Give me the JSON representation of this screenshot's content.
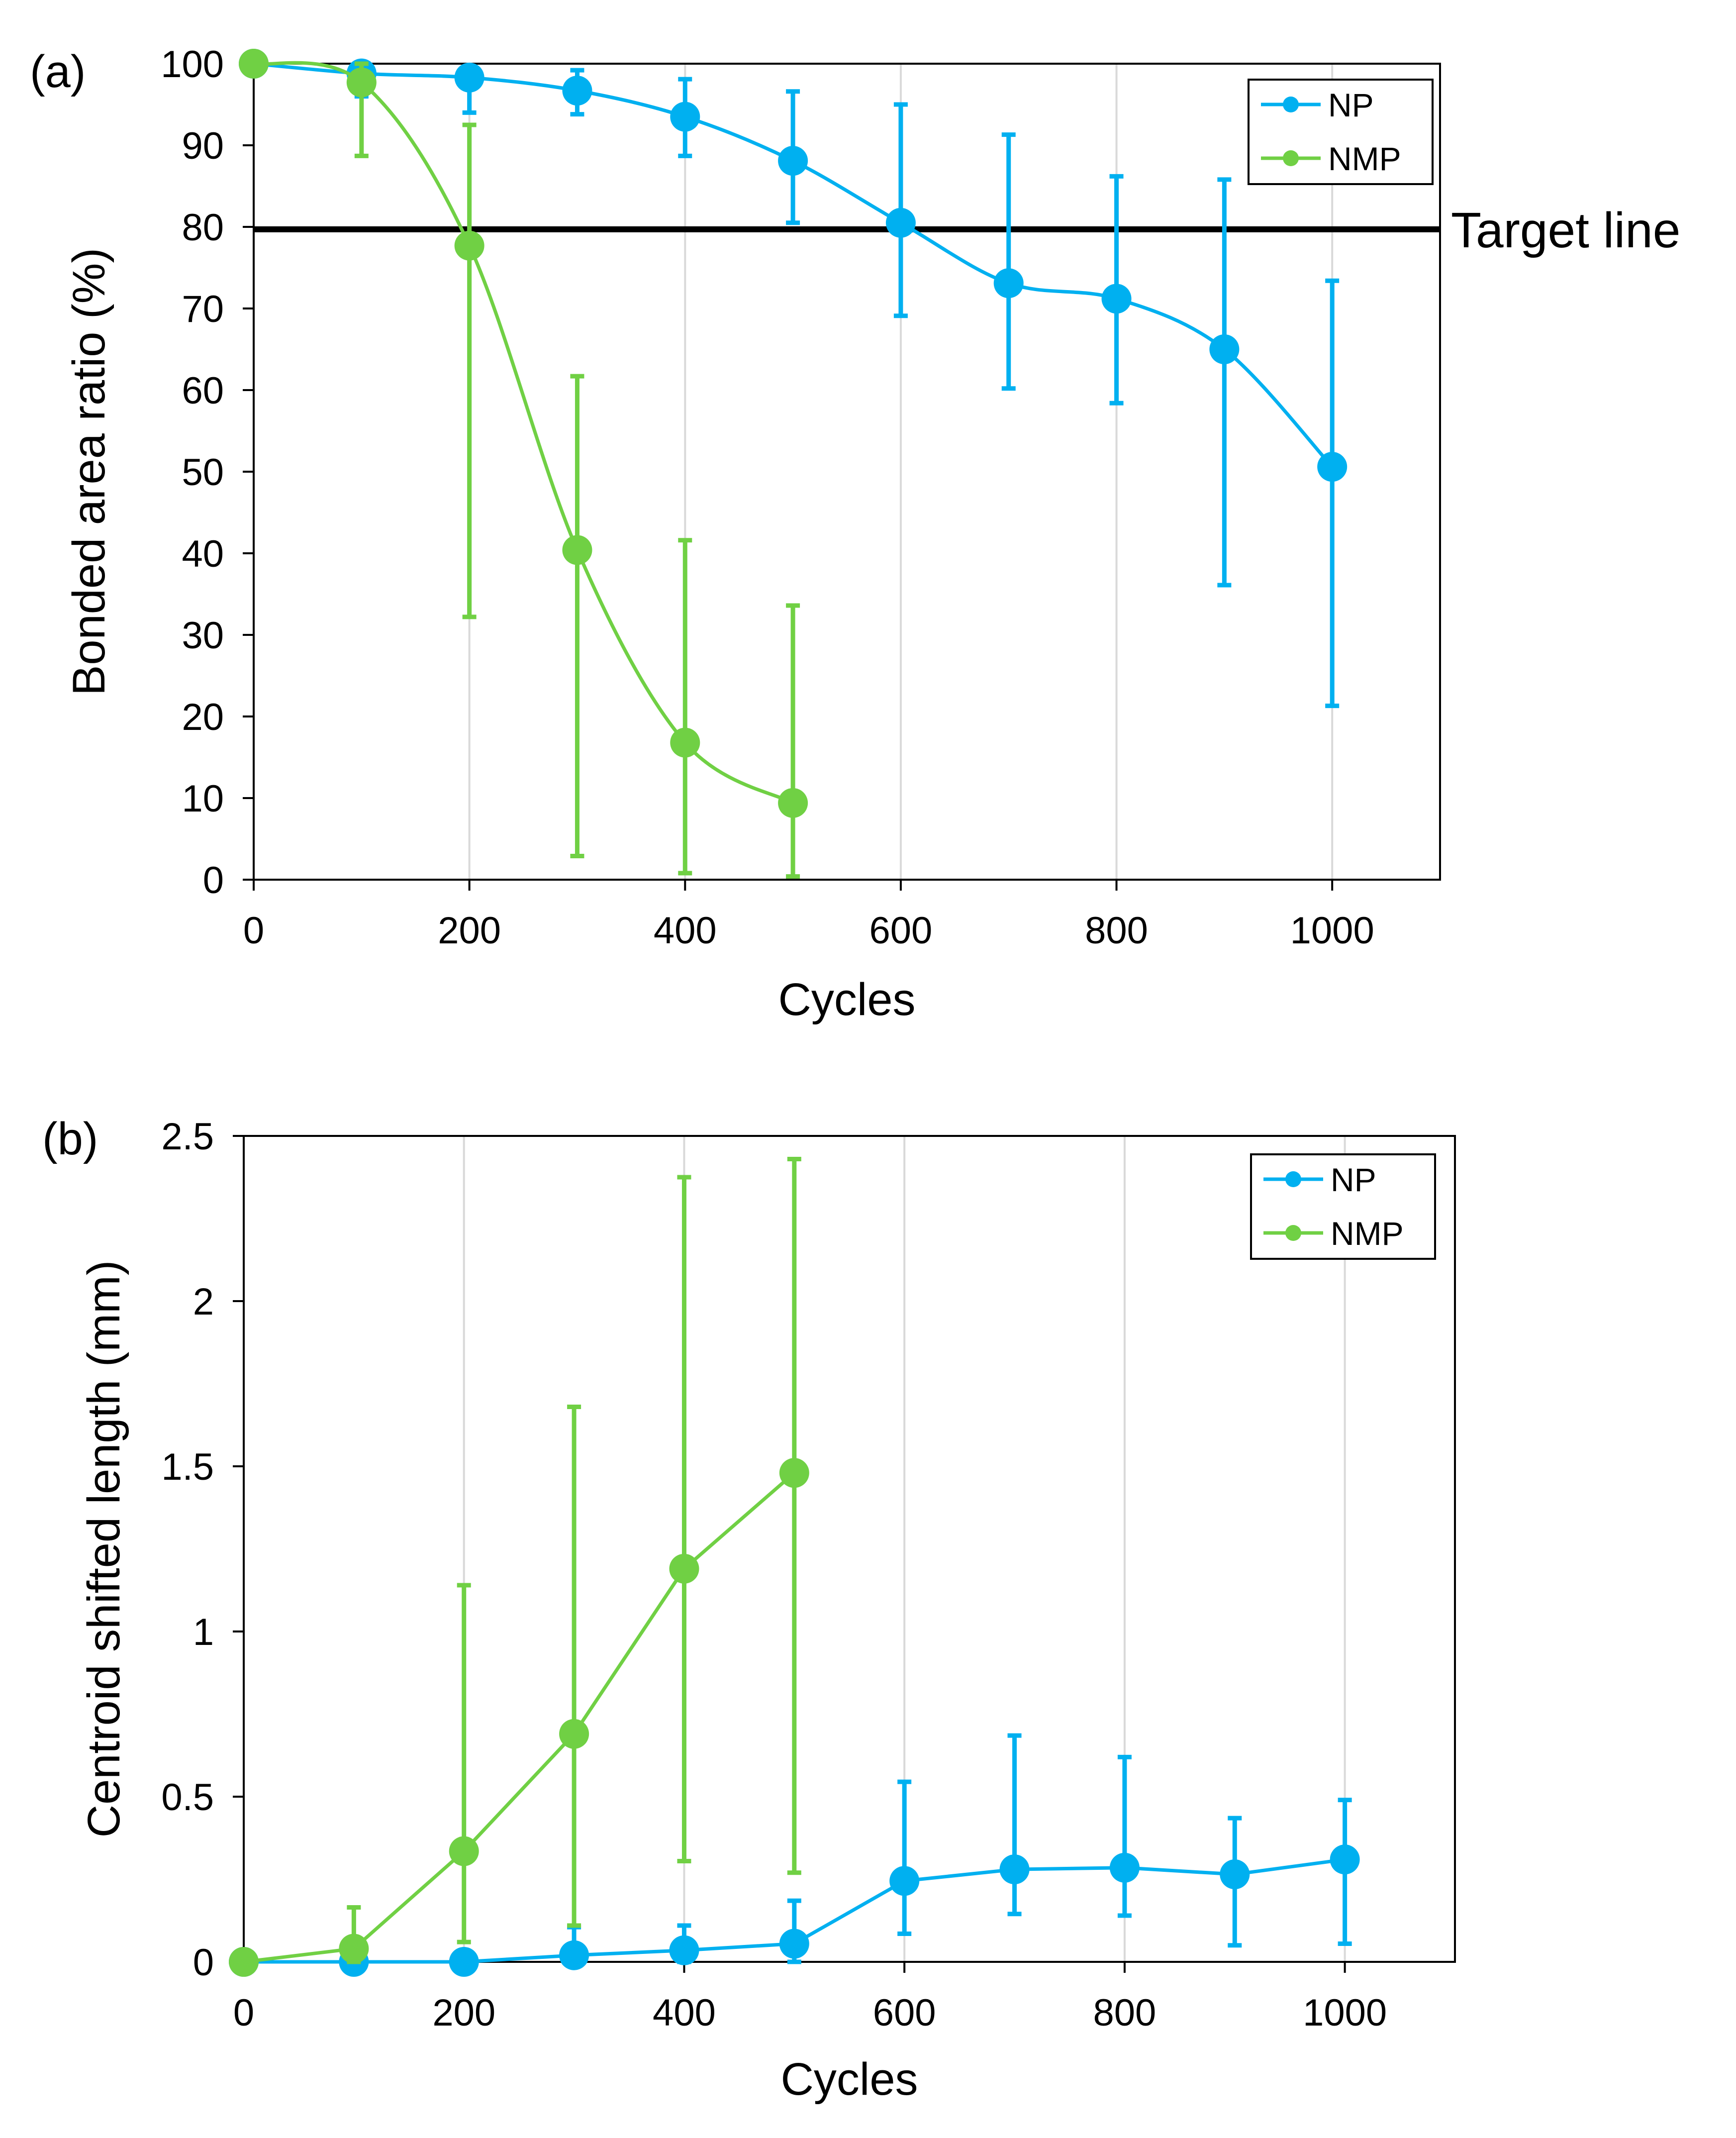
{
  "colors": {
    "NP": "#00B0F0",
    "NMP": "#70D044",
    "grid": "#D9D9D9",
    "axis": "#000000"
  },
  "chart_data": [
    {
      "panel": "(a)",
      "type": "line",
      "xlabel": "Cycles",
      "ylabel": "Bonded area ratio (%)",
      "xlim": [
        0,
        1100
      ],
      "ylim": [
        0,
        100
      ],
      "xticks": [
        "0",
        "200",
        "400",
        "600",
        "800",
        "1000"
      ],
      "yticks": [
        "0",
        "10",
        "20",
        "30",
        "40",
        "50",
        "60",
        "70",
        "80",
        "90",
        "100"
      ],
      "legend": "top-right",
      "reference_line": {
        "y": 79.7,
        "label": "Target line"
      },
      "series": [
        {
          "name": "NP",
          "x": [
            0,
            100,
            200,
            300,
            400,
            500,
            600,
            700,
            800,
            900,
            1000
          ],
          "y": [
            100,
            98.8,
            98.3,
            96.7,
            93.5,
            88.1,
            80.5,
            73.1,
            71.2,
            65.0,
            50.6
          ],
          "err_low": [
            100,
            96,
            94,
            93.8,
            88.7,
            80.5,
            69.1,
            60.2,
            58.4,
            36.1,
            21.3
          ],
          "err_high": [
            100,
            100,
            98.7,
            99.2,
            98.1,
            96.6,
            95.0,
            91.3,
            86.2,
            85.8,
            73.4
          ]
        },
        {
          "name": "NMP",
          "x": [
            0,
            100,
            200,
            300,
            400,
            500
          ],
          "y": [
            100,
            97.7,
            77.7,
            40.4,
            16.8,
            9.4
          ],
          "err_low": [
            100,
            88.7,
            32.2,
            2.9,
            0.8,
            0.4
          ],
          "err_high": [
            100,
            100,
            92.5,
            61.7,
            41.6,
            33.6
          ]
        }
      ]
    },
    {
      "panel": "(b)",
      "type": "line",
      "xlabel": "Cycles",
      "ylabel": "Centroid shifted length (mm)",
      "xlim": [
        0,
        1100
      ],
      "ylim": [
        0,
        2.5
      ],
      "xticks": [
        "0",
        "200",
        "400",
        "600",
        "800",
        "1000"
      ],
      "yticks": [
        "0",
        "0.5",
        "1",
        "1.5",
        "2",
        "2.5"
      ],
      "legend": "top-right",
      "series": [
        {
          "name": "NP",
          "x": [
            0,
            100,
            200,
            300,
            400,
            500,
            600,
            700,
            800,
            900,
            1000
          ],
          "y": [
            0,
            0,
            0,
            0.02,
            0.035,
            0.055,
            0.245,
            0.28,
            0.285,
            0.265,
            0.31
          ],
          "err_low": [
            0,
            0,
            0,
            0,
            0,
            0,
            0.085,
            0.145,
            0.14,
            0.05,
            0.055
          ],
          "err_high": [
            0,
            0,
            0,
            0.105,
            0.11,
            0.185,
            0.545,
            0.685,
            0.62,
            0.435,
            0.49
          ]
        },
        {
          "name": "NMP",
          "x": [
            0,
            100,
            200,
            300,
            400,
            500
          ],
          "y": [
            0,
            0.04,
            0.335,
            0.69,
            1.19,
            1.48
          ],
          "err_low": [
            0,
            0,
            0.06,
            0.11,
            0.305,
            0.27
          ],
          "err_high": [
            0,
            0.165,
            1.14,
            1.68,
            2.375,
            2.43
          ]
        }
      ]
    }
  ]
}
